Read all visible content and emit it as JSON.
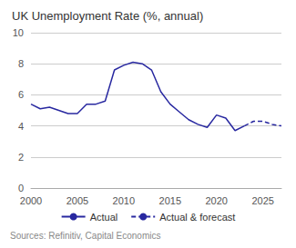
{
  "chart_data": {
    "type": "line",
    "title": "UK Unemployment Rate (%, annual)",
    "source": "Sources: Refinitiv, Capital Economics",
    "x": [
      2000,
      2001,
      2002,
      2003,
      2004,
      2005,
      2006,
      2007,
      2008,
      2009,
      2010,
      2011,
      2012,
      2013,
      2014,
      2015,
      2016,
      2017,
      2018,
      2019,
      2020,
      2021,
      2022,
      2023,
      2024,
      2025,
      2026,
      2027
    ],
    "series": [
      {
        "name": "Actual",
        "color": "#2828a0",
        "line_style": "solid",
        "values": [
          5.4,
          5.1,
          5.2,
          5.0,
          4.8,
          4.8,
          5.4,
          5.4,
          5.6,
          7.6,
          7.9,
          8.1,
          8.0,
          7.6,
          6.2,
          5.4,
          4.9,
          4.4,
          4.1,
          3.9,
          4.7,
          4.5,
          3.7,
          4.0,
          null,
          null,
          null,
          null
        ]
      },
      {
        "name": "Actual & forecast",
        "color": "#2828a0",
        "line_style": "dashed",
        "values": [
          null,
          null,
          null,
          null,
          null,
          null,
          null,
          null,
          null,
          null,
          null,
          null,
          null,
          null,
          null,
          null,
          null,
          null,
          null,
          null,
          null,
          null,
          null,
          4.0,
          4.3,
          4.3,
          4.1,
          4.0
        ]
      }
    ],
    "xlim": [
      2000,
      2027
    ],
    "ylim": [
      0,
      10
    ],
    "xticks": [
      2000,
      2005,
      2010,
      2015,
      2020,
      2025
    ],
    "yticks": [
      0,
      2,
      4,
      6,
      8,
      10
    ],
    "grid": true,
    "legend": "bottom"
  }
}
